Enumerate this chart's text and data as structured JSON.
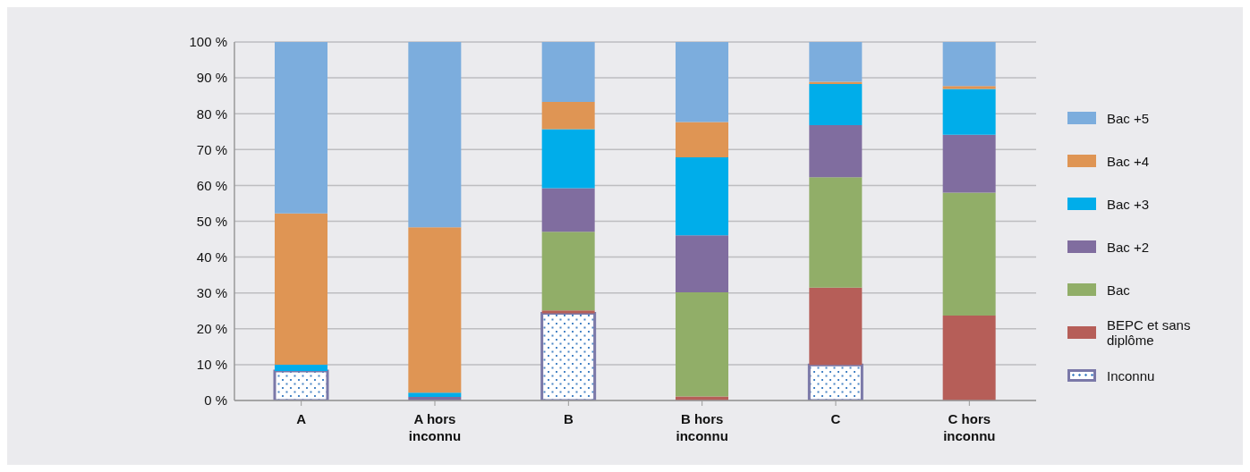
{
  "chart_data": {
    "type": "bar",
    "stacked": true,
    "categories": [
      "A",
      "A hors inconnu",
      "B",
      "B hors inconnu",
      "C",
      "C hors inconnu"
    ],
    "series": [
      {
        "name": "Inconnu",
        "color": "#7a78a8",
        "values": [
          8.2,
          0,
          24.3,
          0,
          9.9,
          0
        ]
      },
      {
        "name": "BEPC et sans diplôme",
        "color": "#b65e58",
        "values": [
          0,
          0,
          0.8,
          1.1,
          21.6,
          23.7
        ]
      },
      {
        "name": "Bac",
        "color": "#91ae68",
        "values": [
          0,
          0,
          22.0,
          29.1,
          30.8,
          34.3
        ]
      },
      {
        "name": "Bac +2",
        "color": "#806d9f",
        "values": [
          0,
          1,
          12.1,
          15.9,
          14.5,
          16.1
        ]
      },
      {
        "name": "Bac +3",
        "color": "#00adea",
        "values": [
          1.8,
          1.2,
          16.5,
          21.7,
          11.5,
          12.8
        ]
      },
      {
        "name": "Bac +4",
        "color": "#df9554",
        "values": [
          42.2,
          46.1,
          7.6,
          9.9,
          0.6,
          0.8
        ]
      },
      {
        "name": "Bac +5",
        "color": "#7caddd",
        "values": [
          47.8,
          52.0,
          16.7,
          22.3,
          11.1,
          12.3
        ]
      }
    ],
    "ylim": [
      0,
      100
    ],
    "yticks": [
      {
        "value": 0,
        "label": "0 %"
      },
      {
        "value": 10,
        "label": "10 %"
      },
      {
        "value": 20,
        "label": "20 %"
      },
      {
        "value": 30,
        "label": "30 %"
      },
      {
        "value": 40,
        "label": "40 %"
      },
      {
        "value": 50,
        "label": "50 %"
      },
      {
        "value": 60,
        "label": "60 %"
      },
      {
        "value": 70,
        "label": "70 %"
      },
      {
        "value": 80,
        "label": "80 %"
      },
      {
        "value": 90,
        "label": "90 %"
      },
      {
        "value": 100,
        "label": "100 %"
      }
    ],
    "grid": "y",
    "legend": "right"
  }
}
